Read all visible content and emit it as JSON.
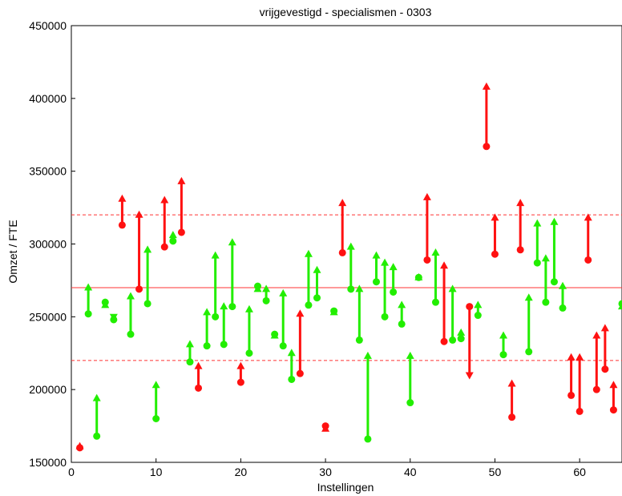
{
  "chart_data": {
    "type": "scatter",
    "title": "vrijgevestigd - specialismen - 0303",
    "xlabel": "Instellingen",
    "ylabel": "Omzet / FTE",
    "xlim": [
      0,
      65
    ],
    "ylim": [
      150000,
      450000
    ],
    "xticks": [
      0,
      10,
      20,
      30,
      40,
      50,
      60
    ],
    "yticks": [
      150000,
      200000,
      250000,
      300000,
      350000,
      400000,
      450000
    ],
    "xtick_labels": [
      "0",
      "10",
      "20",
      "30",
      "40",
      "50",
      "60"
    ],
    "ytick_labels": [
      "150000",
      "200000",
      "250000",
      "300000",
      "350000",
      "400000",
      "450000"
    ],
    "reference_lines": [
      {
        "y": 270000,
        "style": "solid",
        "color": "#ff3333"
      },
      {
        "y": 320000,
        "style": "dashed",
        "color": "#ff3333"
      },
      {
        "y": 220000,
        "style": "dashed",
        "color": "#ff3333"
      }
    ],
    "colors": {
      "increase": "#22ee00",
      "decrease": "#ff1111"
    },
    "series": [
      {
        "from_to": "start circle to end arrow",
        "points": [
          [
            1,
            160000,
            164000
          ],
          [
            2,
            252000,
            273000
          ],
          [
            3,
            168000,
            197000
          ],
          [
            4,
            260000,
            261000
          ],
          [
            5,
            248000,
            247000
          ],
          [
            6,
            313000,
            334000
          ],
          [
            7,
            238000,
            267000
          ],
          [
            8,
            269000,
            323000
          ],
          [
            9,
            259000,
            299000
          ],
          [
            10,
            180000,
            206000
          ],
          [
            11,
            298000,
            333000
          ],
          [
            12,
            302000,
            309000
          ],
          [
            13,
            308000,
            346000
          ],
          [
            14,
            219000,
            234000
          ],
          [
            15,
            201000,
            219000
          ],
          [
            16,
            230000,
            256000
          ],
          [
            17,
            250000,
            295000
          ],
          [
            18,
            231000,
            260000
          ],
          [
            19,
            257000,
            304000
          ],
          [
            20,
            205000,
            219000
          ],
          [
            21,
            225000,
            258000
          ],
          [
            22,
            271000,
            272000
          ],
          [
            23,
            261000,
            272000
          ],
          [
            24,
            238000,
            240000
          ],
          [
            25,
            230000,
            269000
          ],
          [
            26,
            207000,
            228000
          ],
          [
            27,
            211000,
            255000
          ],
          [
            28,
            258000,
            296000
          ],
          [
            29,
            263000,
            285000
          ],
          [
            30,
            175000,
            176000
          ],
          [
            31,
            254000,
            256000
          ],
          [
            32,
            294000,
            331000
          ],
          [
            33,
            269000,
            301000
          ],
          [
            34,
            234000,
            272000
          ],
          [
            35,
            166000,
            226000
          ],
          [
            36,
            274000,
            295000
          ],
          [
            37,
            250000,
            290000
          ],
          [
            38,
            267000,
            287000
          ],
          [
            39,
            245000,
            261000
          ],
          [
            40,
            191000,
            226000
          ],
          [
            41,
            277000,
            280000
          ],
          [
            42,
            289000,
            335000
          ],
          [
            43,
            260000,
            297000
          ],
          [
            44,
            233000,
            288000
          ],
          [
            45,
            234000,
            272000
          ],
          [
            46,
            235000,
            242000
          ],
          [
            47,
            257000,
            207000
          ],
          [
            48,
            251000,
            261000
          ],
          [
            49,
            367000,
            411000
          ],
          [
            50,
            293000,
            321000
          ],
          [
            51,
            224000,
            240000
          ],
          [
            52,
            181000,
            207000
          ],
          [
            53,
            296000,
            331000
          ],
          [
            54,
            226000,
            266000
          ],
          [
            55,
            287000,
            317000
          ],
          [
            56,
            260000,
            293000
          ],
          [
            57,
            274000,
            318000
          ],
          [
            58,
            256000,
            274000
          ],
          [
            59,
            196000,
            225000
          ],
          [
            60,
            185000,
            225000
          ],
          [
            61,
            289000,
            321000
          ],
          [
            62,
            200000,
            240000
          ],
          [
            63,
            214000,
            245000
          ],
          [
            64,
            186000,
            206000
          ],
          [
            65,
            259000,
            260000
          ]
        ],
        "point_colors": [
          "decrease",
          "increase",
          "increase",
          "increase",
          "increase",
          "decrease",
          "increase",
          "decrease",
          "increase",
          "increase",
          "decrease",
          "increase",
          "decrease",
          "increase",
          "decrease",
          "increase",
          "increase",
          "increase",
          "increase",
          "decrease",
          "increase",
          "increase",
          "increase",
          "increase",
          "increase",
          "increase",
          "decrease",
          "increase",
          "increase",
          "decrease",
          "increase",
          "decrease",
          "increase",
          "increase",
          "increase",
          "increase",
          "increase",
          "increase",
          "increase",
          "increase",
          "increase",
          "decrease",
          "increase",
          "decrease",
          "increase",
          "increase",
          "decrease",
          "increase",
          "decrease",
          "decrease",
          "increase",
          "decrease",
          "decrease",
          "increase",
          "increase",
          "increase",
          "increase",
          "increase",
          "decrease",
          "decrease",
          "decrease",
          "decrease",
          "decrease",
          "decrease",
          "increase"
        ]
      }
    ],
    "grid": false
  }
}
